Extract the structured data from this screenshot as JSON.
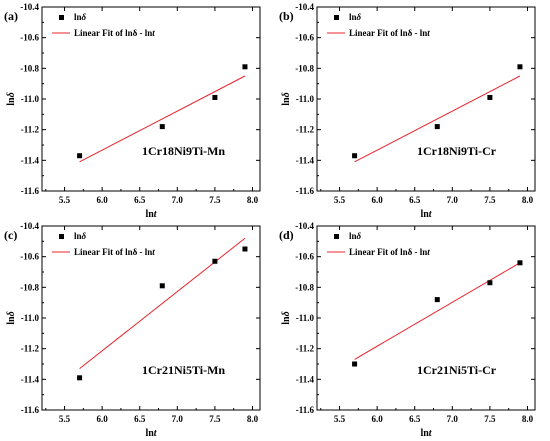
{
  "chart_data": [
    {
      "type": "scatter",
      "panel_label": "(a)",
      "xlabel": "lnt",
      "ylabel": "lnδ",
      "xlim": [
        5.2,
        8.1
      ],
      "ylim": [
        -11.6,
        -10.4
      ],
      "xticks": [
        "5.5",
        "6.0",
        "6.5",
        "7.0",
        "7.5",
        "8.0"
      ],
      "yticks": [
        "-10.4",
        "-10.6",
        "-10.8",
        "-11.0",
        "-11.2",
        "-11.4",
        "-11.6"
      ],
      "annotation": "1Cr18Ni9Ti-Mn",
      "legend": [
        "lnδ",
        "Linear Fit of lnδ - lnt"
      ],
      "legend_position": "top-left",
      "series": [
        {
          "name": "lnδ",
          "x": [
            5.7,
            6.8,
            7.5,
            7.9
          ],
          "y": [
            -11.37,
            -11.18,
            -10.99,
            -10.79
          ]
        },
        {
          "name": "Linear Fit of lnδ - lnt",
          "x": [
            5.7,
            7.9
          ],
          "y": [
            -11.41,
            -10.85
          ]
        }
      ]
    },
    {
      "type": "scatter",
      "panel_label": "(b)",
      "xlabel": "lnt",
      "ylabel": "lnδ",
      "xlim": [
        5.2,
        8.1
      ],
      "ylim": [
        -11.6,
        -10.4
      ],
      "xticks": [
        "5.5",
        "6.0",
        "6.5",
        "7.0",
        "7.5",
        "8.0"
      ],
      "yticks": [
        "-10.4",
        "-10.6",
        "-10.8",
        "-11.0",
        "-11.2",
        "-11.4",
        "-11.6"
      ],
      "annotation": "1Cr18Ni9Ti-Cr",
      "legend": [
        "lnδ",
        "Linear Fit of lnδ - lnt"
      ],
      "legend_position": "top-left",
      "series": [
        {
          "name": "lnδ",
          "x": [
            5.7,
            6.8,
            7.5,
            7.9
          ],
          "y": [
            -11.37,
            -11.18,
            -10.99,
            -10.79
          ]
        },
        {
          "name": "Linear Fit of lnδ - lnt",
          "x": [
            5.7,
            7.9
          ],
          "y": [
            -11.41,
            -10.85
          ]
        }
      ]
    },
    {
      "type": "scatter",
      "panel_label": "(c)",
      "xlabel": "lnt",
      "ylabel": "lnδ",
      "xlim": [
        5.2,
        8.1
      ],
      "ylim": [
        -11.6,
        -10.4
      ],
      "xticks": [
        "5.5",
        "6.0",
        "6.5",
        "7.0",
        "7.5",
        "8.0"
      ],
      "yticks": [
        "-10.4",
        "-10.6",
        "-10.8",
        "-11.0",
        "-11.2",
        "-11.4",
        "-11.6"
      ],
      "annotation": "1Cr21Ni5Ti-Mn",
      "legend": [
        "lnδ",
        "Linear Fit of lnδ - lnt"
      ],
      "legend_position": "top-left",
      "series": [
        {
          "name": "lnδ",
          "x": [
            5.7,
            6.8,
            7.5,
            7.9
          ],
          "y": [
            -11.39,
            -10.79,
            -10.63,
            -10.55
          ]
        },
        {
          "name": "Linear Fit of lnδ - lnt",
          "x": [
            5.7,
            7.9
          ],
          "y": [
            -11.33,
            -10.48
          ]
        }
      ]
    },
    {
      "type": "scatter",
      "panel_label": "(d)",
      "xlabel": "lnt",
      "ylabel": "lnδ",
      "xlim": [
        5.2,
        8.1
      ],
      "ylim": [
        -11.6,
        -10.4
      ],
      "xticks": [
        "5.5",
        "6.0",
        "6.5",
        "7.0",
        "7.5",
        "8.0"
      ],
      "yticks": [
        "-10.4",
        "-10.6",
        "-10.8",
        "-11.0",
        "-11.2",
        "-11.4",
        "-11.6"
      ],
      "annotation": "1Cr21Ni5Ti-Cr",
      "legend": [
        "lnδ",
        "Linear Fit of lnδ - lnt"
      ],
      "legend_position": "top-left",
      "series": [
        {
          "name": "lnδ",
          "x": [
            5.7,
            6.8,
            7.5,
            7.9
          ],
          "y": [
            -11.3,
            -10.88,
            -10.77,
            -10.64
          ]
        },
        {
          "name": "Linear Fit of lnδ - lnt",
          "x": [
            5.7,
            7.9
          ],
          "y": [
            -11.27,
            -10.64
          ]
        }
      ]
    }
  ],
  "colors": {
    "points": "#000000",
    "fit_line": "#e8242c",
    "frame": "#000000"
  }
}
